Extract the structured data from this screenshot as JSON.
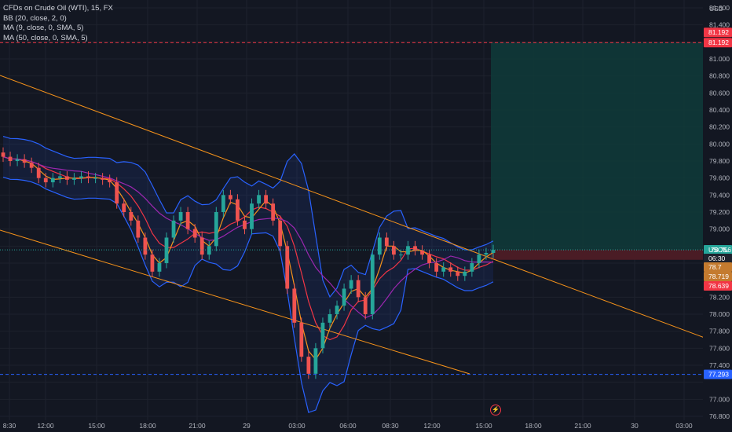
{
  "legend": {
    "title": "CFDs on Crude Oil (WTI), 15, FX",
    "bb": "BB (20, close, 2, 0)",
    "ma9": "MA (9, close, 0, SMA, 5)",
    "ma50": "MA (50, close, 0, SMA, 5)"
  },
  "currency": "USD",
  "y_axis": {
    "labels": [
      "81.600",
      "81.400",
      "81.000",
      "80.800",
      "80.600",
      "80.400",
      "80.200",
      "80.000",
      "79.800",
      "79.600",
      "79.400",
      "79.200",
      "79.000",
      "78.200",
      "78.000",
      "77.800",
      "77.600",
      "77.400",
      "77.000",
      "76.800"
    ]
  },
  "x_axis": {
    "labels": [
      "8:30",
      "12:00",
      "15:00",
      "18:00",
      "21:00",
      "29",
      "03:00",
      "06:00",
      "08:30",
      "12:00",
      "15:00",
      "18:00",
      "21:00",
      "30",
      "03:00"
    ]
  },
  "badges": {
    "target": "81.192",
    "target_line": "81.192",
    "symbol": "USOIL",
    "price": "78.756",
    "countdown": "06:30",
    "mid1": "78.7",
    "mid2": "78.719",
    "stop": "78.639",
    "low": "77.293"
  },
  "colors": {
    "background": "#131722",
    "grid": "#1e222d",
    "up": "#26a69a",
    "down": "#ef5350",
    "bollinger": "#2962ff",
    "ma9": "#f7931a",
    "ma50": "#9c27b0",
    "channel": "#f7931a",
    "target_zone": "#0f3b3a",
    "stop_zone": "#4a1c25"
  },
  "chart_data": {
    "type": "candlestick",
    "symbol": "USOIL",
    "interval": "15",
    "ylim": [
      76.8,
      81.6
    ],
    "price_series": [
      79.85,
      79.8,
      79.82,
      79.78,
      79.72,
      79.6,
      79.55,
      79.6,
      79.62,
      79.58,
      79.6,
      79.62,
      79.6,
      79.6,
      79.58,
      79.55,
      79.3,
      79.2,
      79.1,
      78.9,
      78.7,
      78.5,
      78.6,
      78.9,
      79.1,
      79.2,
      79.0,
      78.9,
      78.7,
      78.8,
      79.2,
      79.4,
      79.35,
      79.1,
      79.0,
      79.3,
      79.4,
      79.3,
      79.1,
      78.8,
      78.3,
      77.9,
      77.5,
      77.3,
      77.6,
      77.9,
      78.0,
      78.1,
      78.3,
      78.4,
      78.2,
      78.0,
      78.7,
      78.9,
      78.8,
      78.7,
      78.7,
      78.8,
      78.75,
      78.7,
      78.6,
      78.5,
      78.55,
      78.5,
      78.45,
      78.5,
      78.6,
      78.7,
      78.72,
      78.756
    ],
    "annotations": {
      "target_price": 81.192,
      "last_price": 78.756,
      "stop_price": 78.639,
      "low_line": 77.293
    }
  }
}
